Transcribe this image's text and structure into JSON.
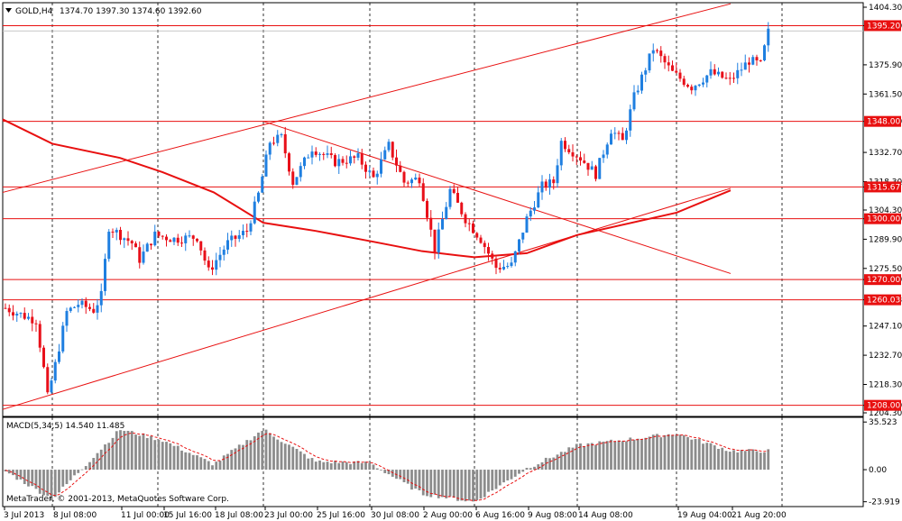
{
  "header": {
    "symbol": "GOLD,H4",
    "ohlc": "1374.70 1397.30 1374.60 1392.60"
  },
  "footer": {
    "copyright": "MetaTrader, © 2001-2013, MetaQuotes Software Corp."
  },
  "colors": {
    "bull": "#1f7fe0",
    "bear": "#e8101a",
    "line": "#e81010",
    "macd_bar": "#8c8c8c",
    "signal": "#e81010"
  },
  "chart_data": {
    "type": "candlestick",
    "symbol": "GOLD",
    "timeframe": "H4",
    "price_axis": {
      "ticks": [
        1404.3,
        1395.2,
        1375.9,
        1361.5,
        1348.0,
        1332.7,
        1318.3,
        1315.67,
        1304.3,
        1300.0,
        1289.9,
        1275.5,
        1270.0,
        1260.03,
        1247.1,
        1232.7,
        1218.3,
        1208.0,
        1204.3
      ],
      "range": [
        1204.3,
        1406.0
      ]
    },
    "time_axis": {
      "labels": [
        "3 Jul 2013",
        "8 Jul 08:00",
        "11 Jul 00:00",
        "15 Jul 16:00",
        "18 Jul 08:00",
        "23 Jul 00:00",
        "25 Jul 16:00",
        "30 Jul 08:00",
        "2 Aug 00:00",
        "6 Aug 16:00",
        "9 Aug 08:00",
        "14 Aug 08:00",
        "19 Aug 04:00",
        "21 Aug 20:00"
      ]
    },
    "horizontal_levels": [
      {
        "price": 1395.2,
        "label": "1395.20"
      },
      {
        "price": 1348.0,
        "label": "1348.00"
      },
      {
        "price": 1315.67,
        "label": "1315.67"
      },
      {
        "price": 1300.0,
        "label": "1300.00"
      },
      {
        "price": 1270.0,
        "label": "1270.00"
      },
      {
        "price": 1260.03,
        "label": "1260.03"
      },
      {
        "price": 1208.0,
        "label": "1208.00"
      }
    ],
    "current_price": {
      "price": 1392.6,
      "label": "1392.60"
    },
    "trend_lines": [
      {
        "from": [
          "3 Jul 2013",
          1313.0
        ],
        "to": [
          "21 Aug 20:00",
          1406.0
        ]
      },
      {
        "from": [
          "3 Jul 2013",
          1206.0
        ],
        "to": [
          "21 Aug 20:00",
          1315.0
        ]
      },
      {
        "from": [
          "23 Jul 00:00",
          1348.0
        ],
        "to": [
          "21 Aug 20:00",
          1273.0
        ]
      }
    ],
    "moving_average": [
      [
        "3 Jul 2013",
        1349.0
      ],
      [
        "8 Jul 08:00",
        1337.0
      ],
      [
        "11 Jul 00:00",
        1330.0
      ],
      [
        "15 Jul 16:00",
        1323.0
      ],
      [
        "18 Jul 08:00",
        1313.0
      ],
      [
        "23 Jul 00:00",
        1298.0
      ],
      [
        "25 Jul 16:00",
        1294.0
      ],
      [
        "30 Jul 08:00",
        1289.0
      ],
      [
        "2 Aug 00:00",
        1284.0
      ],
      [
        "6 Aug 16:00",
        1281.0
      ],
      [
        "9 Aug 08:00",
        1283.0
      ],
      [
        "14 Aug 08:00",
        1292.0
      ],
      [
        "19 Aug 04:00",
        1303.0
      ],
      [
        "21 Aug 20:00",
        1314.0
      ]
    ],
    "macd": {
      "label": "MACD(5,34,5) 14.540 11.485",
      "ticks": [
        35.523,
        0.0,
        -23.919
      ],
      "range": [
        -25.5,
        37.0
      ],
      "trend": [
        [
          "3 Jul 2013",
          0
        ],
        [
          "8 Jul 08:00",
          -22
        ],
        [
          "11 Jul 00:00",
          30
        ],
        [
          "15 Jul 16:00",
          22
        ],
        [
          "18 Jul 08:00",
          4
        ],
        [
          "23 Jul 00:00",
          30
        ],
        [
          "25 Jul 16:00",
          6
        ],
        [
          "30 Jul 08:00",
          5
        ],
        [
          "2 Aug 00:00",
          -18
        ],
        [
          "6 Aug 16:00",
          -24
        ],
        [
          "9 Aug 08:00",
          1
        ],
        [
          "14 Aug 08:00",
          18
        ],
        [
          "19 Aug 04:00",
          27
        ],
        [
          "21 Aug 20:00",
          14
        ]
      ]
    },
    "price_path": [
      [
        0,
        1256
      ],
      [
        5,
        1252
      ],
      [
        8,
        1250
      ],
      [
        10,
        1226
      ],
      [
        11,
        1212
      ],
      [
        13,
        1228
      ],
      [
        16,
        1254
      ],
      [
        19,
        1258
      ],
      [
        23,
        1255
      ],
      [
        25,
        1262
      ],
      [
        27,
        1296
      ],
      [
        33,
        1288
      ],
      [
        35,
        1280
      ],
      [
        39,
        1292
      ],
      [
        44,
        1290
      ],
      [
        50,
        1291
      ],
      [
        53,
        1274
      ],
      [
        58,
        1288
      ],
      [
        63,
        1294
      ],
      [
        66,
        1312
      ],
      [
        69,
        1338
      ],
      [
        72,
        1340
      ],
      [
        75,
        1318
      ],
      [
        80,
        1335
      ],
      [
        86,
        1328
      ],
      [
        92,
        1330
      ],
      [
        96,
        1320
      ],
      [
        100,
        1336
      ],
      [
        104,
        1318
      ],
      [
        108,
        1320
      ],
      [
        112,
        1285
      ],
      [
        116,
        1314
      ],
      [
        120,
        1300
      ],
      [
        124,
        1290
      ],
      [
        128,
        1276
      ],
      [
        132,
        1277
      ],
      [
        136,
        1300
      ],
      [
        140,
        1316
      ],
      [
        143,
        1318
      ],
      [
        145,
        1338
      ],
      [
        150,
        1330
      ],
      [
        154,
        1322
      ],
      [
        158,
        1344
      ],
      [
        161,
        1338
      ],
      [
        164,
        1360
      ],
      [
        169,
        1384
      ],
      [
        174,
        1372
      ],
      [
        179,
        1365
      ],
      [
        184,
        1372
      ],
      [
        189,
        1368
      ],
      [
        194,
        1378
      ],
      [
        197,
        1376
      ],
      [
        199,
        1392
      ]
    ]
  }
}
